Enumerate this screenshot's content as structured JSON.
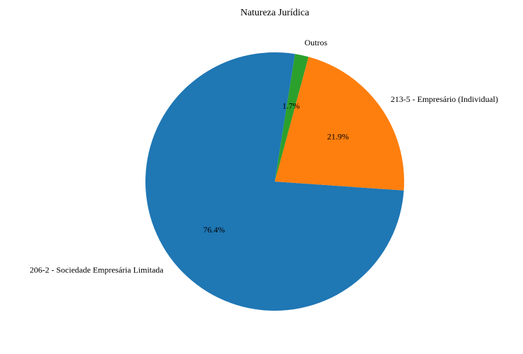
{
  "chart_data": {
    "type": "pie",
    "title": "Natureza Jurídica",
    "slices": [
      {
        "label": "206-2 - Sociedade Empresária Limitada",
        "value": 76.4,
        "pct_label": "76.4%",
        "color": "#1f77b4"
      },
      {
        "label": "213-5 - Empresário (Individual)",
        "value": 21.9,
        "pct_label": "21.9%",
        "color": "#ff7f0e"
      },
      {
        "label": "Outros",
        "value": 1.7,
        "pct_label": "1.7%",
        "color": "#2ca02c"
      }
    ],
    "start_angle_deg": 81,
    "counterclockwise": true,
    "legend": "none"
  }
}
